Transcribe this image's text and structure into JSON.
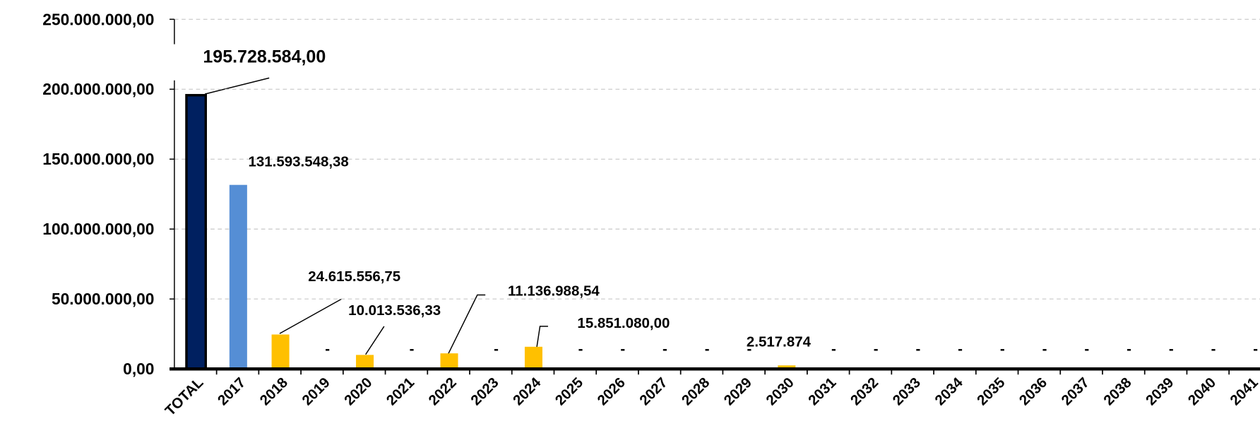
{
  "chart_data": {
    "type": "bar",
    "categories": [
      "TOTAL",
      "2017",
      "2018",
      "2019",
      "2020",
      "2021",
      "2022",
      "2023",
      "2024",
      "2025",
      "2026",
      "2027",
      "2028",
      "2029",
      "2030",
      "2031",
      "2032",
      "2033",
      "2034",
      "2035",
      "2036",
      "2037",
      "2038",
      "2039",
      "2040",
      "2041"
    ],
    "values": [
      195728584,
      131593548.38,
      24615556.75,
      0,
      10013536.33,
      0,
      11136988.54,
      0,
      15851080,
      0,
      0,
      0,
      0,
      0,
      2517874,
      0,
      0,
      0,
      0,
      0,
      0,
      0,
      0,
      0,
      0,
      0
    ],
    "value_labels": [
      "195.728.584,00",
      "131.593.548,38",
      "24.615.556,75",
      "-",
      "10.013.536,33",
      "-",
      "11.136.988,54",
      "-",
      "15.851.080,00",
      "-",
      "-",
      "-",
      "-",
      "-",
      "2.517.874",
      "-",
      "-",
      "-",
      "-",
      "-",
      "-",
      "-",
      "-",
      "-",
      "-",
      "-"
    ],
    "colors": [
      "#002060",
      "#558ed5",
      "#ffc000",
      "#ffc000",
      "#ffc000",
      "#ffc000",
      "#ffc000",
      "#ffc000",
      "#ffc000",
      "#ffc000",
      "#ffc000",
      "#ffc000",
      "#ffc000",
      "#ffc000",
      "#ffc000",
      "#ffc000",
      "#ffc000",
      "#ffc000",
      "#ffc000",
      "#ffc000",
      "#ffc000",
      "#ffc000",
      "#ffc000",
      "#ffc000",
      "#ffc000",
      "#ffc000"
    ],
    "ylim": [
      0,
      250000000
    ],
    "yticks": [
      {
        "value": 0,
        "label": "0,00"
      },
      {
        "value": 50000000,
        "label": "50.000.000,00"
      },
      {
        "value": 100000000,
        "label": "100.000.000,00"
      },
      {
        "value": 150000000,
        "label": "150.000.000,00"
      },
      {
        "value": 200000000,
        "label": "200.000.000,00"
      },
      {
        "value": 250000000,
        "label": "250.000.000,00"
      }
    ],
    "grid": true
  }
}
